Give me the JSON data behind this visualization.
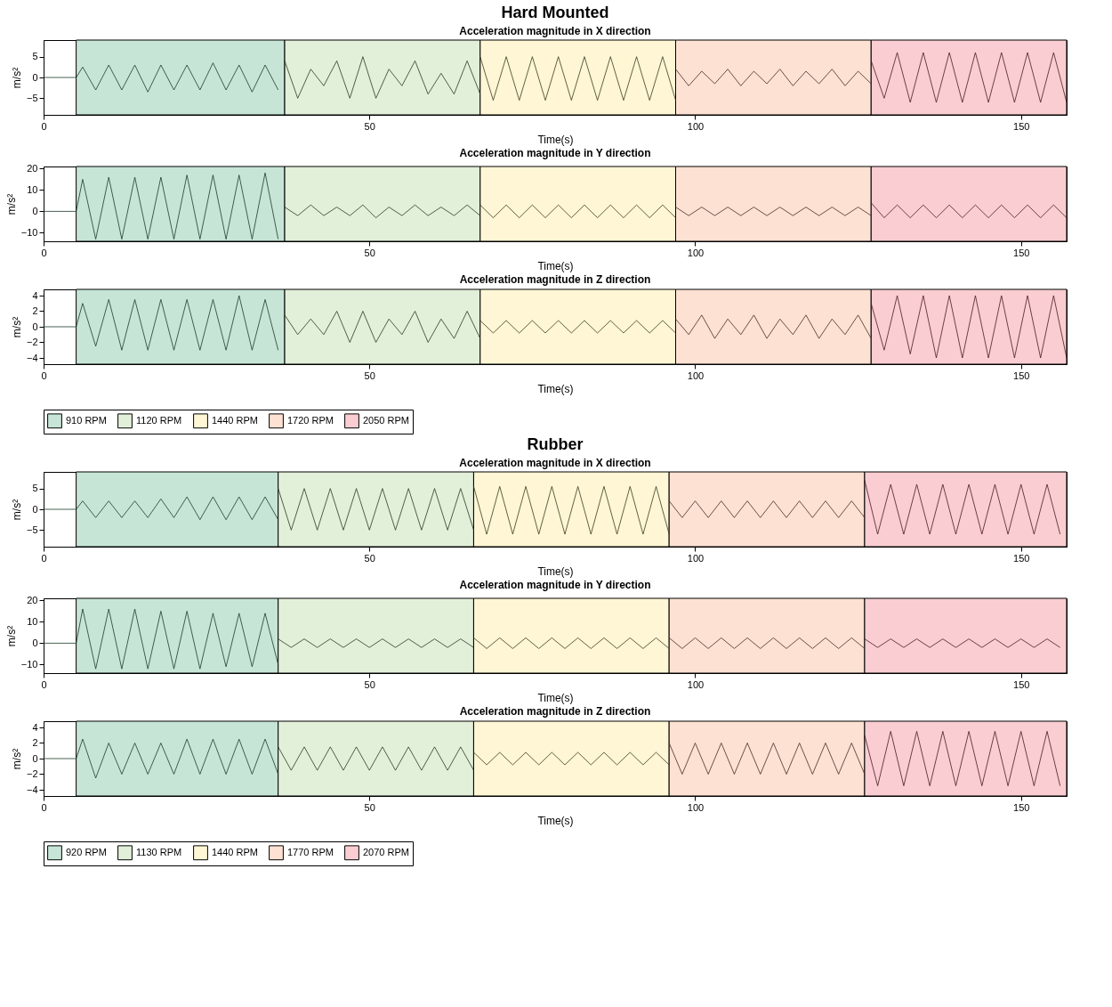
{
  "chart_data": [
    {
      "type": "line",
      "title": "Hard Mounted",
      "subtitle": "Acceleration magnitude in X direction",
      "xlabel": "Time(s)",
      "ylabel": "m/s²",
      "xlim": [
        0,
        157
      ],
      "xticks": [
        0,
        50,
        100,
        150
      ],
      "ylim": [
        -9,
        9
      ],
      "yticks": [
        -5,
        0,
        5
      ],
      "bands": [
        {
          "axis": "x",
          "from": 5,
          "to": 37,
          "color": "#c6e5d6"
        },
        {
          "axis": "x",
          "from": 37,
          "to": 67,
          "color": "#e2efd9"
        },
        {
          "axis": "x",
          "from": 67,
          "to": 97,
          "color": "#fef6d4"
        },
        {
          "axis": "x",
          "from": 97,
          "to": 127,
          "color": "#fde1d3"
        },
        {
          "axis": "x",
          "from": 127,
          "to": 157,
          "color": "#f9cdd1"
        }
      ],
      "series": [
        {
          "color": "#1d3a28",
          "x": [
            0,
            5,
            6,
            8,
            10,
            12,
            14,
            16,
            18,
            20,
            22,
            24,
            26,
            28,
            30,
            32,
            34,
            36
          ],
          "values": [
            0,
            0,
            2.5,
            -3,
            3,
            -3,
            3,
            -3.5,
            3,
            -3,
            3,
            -3,
            3.5,
            -3,
            3,
            -3.5,
            3,
            -3
          ]
        },
        {
          "color": "#2a3a1f",
          "x": [
            37,
            39,
            41,
            43,
            45,
            47,
            49,
            51,
            53,
            55,
            57,
            59,
            61,
            63,
            65,
            67
          ],
          "values": [
            4,
            -5,
            2,
            -2,
            4,
            -5,
            5,
            -5,
            2,
            -2,
            4,
            -4,
            1,
            -4,
            4,
            -4
          ]
        },
        {
          "color": "#3a3a20",
          "x": [
            67,
            69,
            71,
            73,
            75,
            77,
            79,
            81,
            83,
            85,
            87,
            89,
            91,
            93,
            95,
            97
          ],
          "values": [
            5,
            -5.5,
            5,
            -5.5,
            5,
            -5.5,
            5,
            -5.5,
            5,
            -5.5,
            5,
            -5.5,
            5,
            -5.5,
            5,
            -5.5
          ]
        },
        {
          "color": "#4a2a22",
          "x": [
            97,
            99,
            101,
            103,
            105,
            107,
            109,
            111,
            113,
            115,
            117,
            119,
            121,
            123,
            125,
            127
          ],
          "values": [
            2,
            -2,
            1.5,
            -1.5,
            2,
            -2,
            1.5,
            -1.5,
            2,
            -2,
            1.5,
            -1.5,
            2,
            -2,
            1.5,
            -1.5
          ]
        },
        {
          "color": "#4a1a22",
          "x": [
            127,
            129,
            131,
            133,
            135,
            137,
            139,
            141,
            143,
            145,
            147,
            149,
            151,
            153,
            155,
            157
          ],
          "values": [
            4,
            -5,
            6,
            -6,
            6,
            -6,
            6,
            -6,
            6,
            -6,
            6,
            -6,
            6,
            -6,
            6,
            -6
          ]
        }
      ]
    },
    {
      "type": "line",
      "title": "Acceleration magnitude in Y direction",
      "xlabel": "Time(s)",
      "ylabel": "m/s²",
      "xlim": [
        0,
        157
      ],
      "xticks": [
        0,
        50,
        100,
        150
      ],
      "ylim": [
        -14,
        21
      ],
      "yticks": [
        -10,
        0,
        10,
        20
      ],
      "bands": [
        {
          "axis": "x",
          "from": 5,
          "to": 37,
          "color": "#c6e5d6"
        },
        {
          "axis": "x",
          "from": 37,
          "to": 67,
          "color": "#e2efd9"
        },
        {
          "axis": "x",
          "from": 67,
          "to": 97,
          "color": "#fef6d4"
        },
        {
          "axis": "x",
          "from": 97,
          "to": 127,
          "color": "#fde1d3"
        },
        {
          "axis": "x",
          "from": 127,
          "to": 157,
          "color": "#f9cdd1"
        }
      ],
      "series": [
        {
          "color": "#1d3a28",
          "x": [
            0,
            5,
            6,
            8,
            10,
            12,
            14,
            16,
            18,
            20,
            22,
            24,
            26,
            28,
            30,
            32,
            34,
            36
          ],
          "values": [
            0,
            0,
            15,
            -13,
            16,
            -13,
            16,
            -13,
            16,
            -13,
            17,
            -13,
            17,
            -13,
            17,
            -13,
            18,
            -13
          ]
        },
        {
          "color": "#2a3a1f",
          "x": [
            37,
            39,
            41,
            43,
            45,
            47,
            49,
            51,
            53,
            55,
            57,
            59,
            61,
            63,
            65,
            67
          ],
          "values": [
            2,
            -2,
            3,
            -2,
            2,
            -2,
            3,
            -3,
            2,
            -2,
            3,
            -2,
            2,
            -2,
            3,
            -2
          ]
        },
        {
          "color": "#3a3a20",
          "x": [
            67,
            69,
            71,
            73,
            75,
            77,
            79,
            81,
            83,
            85,
            87,
            89,
            91,
            93,
            95,
            97
          ],
          "values": [
            3,
            -3,
            3,
            -3,
            3,
            -3,
            3,
            -3,
            3,
            -3,
            3,
            -3,
            3,
            -3,
            3,
            -3
          ]
        },
        {
          "color": "#4a2a22",
          "x": [
            97,
            99,
            101,
            103,
            105,
            107,
            109,
            111,
            113,
            115,
            117,
            119,
            121,
            123,
            125,
            127
          ],
          "values": [
            2,
            -2,
            2,
            -2,
            2,
            -2,
            2,
            -2,
            2,
            -2,
            2,
            -2,
            2,
            -2,
            2,
            -2
          ]
        },
        {
          "color": "#4a1a22",
          "x": [
            127,
            129,
            131,
            133,
            135,
            137,
            139,
            141,
            143,
            145,
            147,
            149,
            151,
            153,
            155,
            157
          ],
          "values": [
            4,
            -3,
            3,
            -3,
            3,
            -3,
            3,
            -3,
            3,
            -3,
            3,
            -3,
            3,
            -3,
            3,
            -3
          ]
        }
      ]
    },
    {
      "type": "line",
      "title": "Acceleration magnitude in Z direction",
      "xlabel": "Time(s)",
      "ylabel": "m/s²",
      "xlim": [
        0,
        157
      ],
      "xticks": [
        0,
        50,
        100,
        150
      ],
      "ylim": [
        -4.8,
        4.8
      ],
      "yticks": [
        -4,
        -2,
        0,
        2,
        4
      ],
      "legend": "bottom",
      "bands": [
        {
          "axis": "x",
          "from": 5,
          "to": 37,
          "color": "#c6e5d6",
          "label": "910 RPM"
        },
        {
          "axis": "x",
          "from": 37,
          "to": 67,
          "color": "#e2efd9",
          "label": "1120 RPM"
        },
        {
          "axis": "x",
          "from": 67,
          "to": 97,
          "color": "#fef6d4",
          "label": "1440 RPM"
        },
        {
          "axis": "x",
          "from": 97,
          "to": 127,
          "color": "#fde1d3",
          "label": "1720 RPM"
        },
        {
          "axis": "x",
          "from": 127,
          "to": 157,
          "color": "#f9cdd1",
          "label": "2050 RPM"
        }
      ],
      "series": [
        {
          "color": "#1d3a28",
          "x": [
            0,
            5,
            6,
            8,
            10,
            12,
            14,
            16,
            18,
            20,
            22,
            24,
            26,
            28,
            30,
            32,
            34,
            36
          ],
          "values": [
            0,
            0,
            3,
            -2.5,
            3.5,
            -3,
            3.5,
            -3,
            3.5,
            -3,
            3.5,
            -3,
            3.5,
            -3,
            4,
            -3,
            3.5,
            -3
          ]
        },
        {
          "color": "#2a3a1f",
          "x": [
            37,
            39,
            41,
            43,
            45,
            47,
            49,
            51,
            53,
            55,
            57,
            59,
            61,
            63,
            65,
            67
          ],
          "values": [
            1.5,
            -1,
            1,
            -1,
            2,
            -2,
            2,
            -2,
            1,
            -1,
            2,
            -2,
            1,
            -1.5,
            2,
            -1.5
          ]
        },
        {
          "color": "#3a3a20",
          "x": [
            67,
            69,
            71,
            73,
            75,
            77,
            79,
            81,
            83,
            85,
            87,
            89,
            91,
            93,
            95,
            97
          ],
          "values": [
            0.8,
            -0.8,
            0.8,
            -0.8,
            0.8,
            -0.8,
            0.8,
            -0.8,
            0.8,
            -0.8,
            0.8,
            -0.8,
            0.8,
            -0.8,
            0.8,
            -0.8
          ]
        },
        {
          "color": "#4a2a22",
          "x": [
            97,
            99,
            101,
            103,
            105,
            107,
            109,
            111,
            113,
            115,
            117,
            119,
            121,
            123,
            125,
            127
          ],
          "values": [
            1,
            -1,
            1.5,
            -1.5,
            1,
            -1,
            1.5,
            -1.5,
            1,
            -1,
            1.5,
            -1.5,
            1,
            -1,
            1.5,
            -1.5
          ]
        },
        {
          "color": "#4a1a22",
          "x": [
            127,
            129,
            131,
            133,
            135,
            137,
            139,
            141,
            143,
            145,
            147,
            149,
            151,
            153,
            155,
            157
          ],
          "values": [
            3,
            -3,
            4,
            -3.5,
            4,
            -4,
            4,
            -4,
            4,
            -4,
            4,
            -4,
            4,
            -4,
            4,
            -4
          ]
        }
      ]
    },
    {
      "type": "line",
      "title": "Rubber",
      "subtitle": "Acceleration magnitude in X direction",
      "xlabel": "Time(s)",
      "ylabel": "m/s²",
      "xlim": [
        0,
        157
      ],
      "xticks": [
        0,
        50,
        100,
        150
      ],
      "ylim": [
        -9,
        9
      ],
      "yticks": [
        -5,
        0,
        5
      ],
      "bands": [
        {
          "axis": "x",
          "from": 5,
          "to": 36,
          "color": "#c6e5d6"
        },
        {
          "axis": "x",
          "from": 36,
          "to": 66,
          "color": "#e2efd9"
        },
        {
          "axis": "x",
          "from": 66,
          "to": 96,
          "color": "#fef6d4"
        },
        {
          "axis": "x",
          "from": 96,
          "to": 126,
          "color": "#fde1d3"
        },
        {
          "axis": "x",
          "from": 126,
          "to": 157,
          "color": "#f9cdd1"
        }
      ],
      "series": [
        {
          "color": "#1d3a28",
          "x": [
            0,
            5,
            6,
            8,
            10,
            12,
            14,
            16,
            18,
            20,
            22,
            24,
            26,
            28,
            30,
            32,
            34,
            36
          ],
          "values": [
            0,
            0,
            2,
            -2,
            2,
            -2,
            2,
            -2,
            2.5,
            -2,
            3,
            -2.5,
            3,
            -2.5,
            3,
            -2.5,
            3,
            -2.5
          ]
        },
        {
          "color": "#2a3a1f",
          "x": [
            36,
            38,
            40,
            42,
            44,
            46,
            48,
            50,
            52,
            54,
            56,
            58,
            60,
            62,
            64,
            66
          ],
          "values": [
            5,
            -5,
            5,
            -5,
            5,
            -5,
            5,
            -5,
            5,
            -5,
            5,
            -5,
            5,
            -5,
            5,
            -5
          ]
        },
        {
          "color": "#3a3a20",
          "x": [
            66,
            68,
            70,
            72,
            74,
            76,
            78,
            80,
            82,
            84,
            86,
            88,
            90,
            92,
            94,
            96
          ],
          "values": [
            5.5,
            -6,
            5.5,
            -6,
            5.5,
            -6,
            5.5,
            -6,
            5.5,
            -6,
            5.5,
            -6,
            5.5,
            -6,
            5.5,
            -6
          ]
        },
        {
          "color": "#4a2a22",
          "x": [
            96,
            98,
            100,
            102,
            104,
            106,
            108,
            110,
            112,
            114,
            116,
            118,
            120,
            122,
            124,
            126
          ],
          "values": [
            2,
            -2,
            2,
            -2,
            2,
            -2,
            2,
            -2,
            2,
            -2,
            2,
            -2,
            2,
            -2,
            2,
            -2
          ]
        },
        {
          "color": "#4a1a22",
          "x": [
            126,
            128,
            130,
            132,
            134,
            136,
            138,
            140,
            142,
            144,
            146,
            148,
            150,
            152,
            154,
            156
          ],
          "values": [
            7,
            -6,
            6,
            -6,
            6,
            -6,
            6,
            -6,
            6,
            -6,
            6,
            -6,
            6,
            -6,
            6,
            -6
          ]
        }
      ]
    },
    {
      "type": "line",
      "title": "Acceleration magnitude in Y direction",
      "xlabel": "Time(s)",
      "ylabel": "m/s²",
      "xlim": [
        0,
        157
      ],
      "xticks": [
        0,
        50,
        100,
        150
      ],
      "ylim": [
        -14,
        21
      ],
      "yticks": [
        -10,
        0,
        10,
        20
      ],
      "bands": [
        {
          "axis": "x",
          "from": 5,
          "to": 36,
          "color": "#c6e5d6"
        },
        {
          "axis": "x",
          "from": 36,
          "to": 66,
          "color": "#e2efd9"
        },
        {
          "axis": "x",
          "from": 66,
          "to": 96,
          "color": "#fef6d4"
        },
        {
          "axis": "x",
          "from": 96,
          "to": 126,
          "color": "#fde1d3"
        },
        {
          "axis": "x",
          "from": 126,
          "to": 157,
          "color": "#f9cdd1"
        }
      ],
      "series": [
        {
          "color": "#1d3a28",
          "x": [
            0,
            5,
            6,
            8,
            10,
            12,
            14,
            16,
            18,
            20,
            22,
            24,
            26,
            28,
            30,
            32,
            34,
            36
          ],
          "values": [
            0,
            0,
            16,
            -12,
            16,
            -12,
            16,
            -12,
            15,
            -12,
            15,
            -12,
            14,
            -11,
            14,
            -11,
            14,
            -10
          ]
        },
        {
          "color": "#2a3a1f",
          "x": [
            36,
            38,
            40,
            42,
            44,
            46,
            48,
            50,
            52,
            54,
            56,
            58,
            60,
            62,
            64,
            66
          ],
          "values": [
            2,
            -2,
            2,
            -2,
            2,
            -2,
            2,
            -2,
            2,
            -2,
            2,
            -2,
            2,
            -2,
            2,
            -2
          ]
        },
        {
          "color": "#3a3a20",
          "x": [
            66,
            68,
            70,
            72,
            74,
            76,
            78,
            80,
            82,
            84,
            86,
            88,
            90,
            92,
            94,
            96
          ],
          "values": [
            2.5,
            -2.5,
            2.5,
            -2.5,
            2.5,
            -2.5,
            2.5,
            -2.5,
            2.5,
            -2.5,
            2.5,
            -2.5,
            2.5,
            -2.5,
            2.5,
            -2.5
          ]
        },
        {
          "color": "#4a2a22",
          "x": [
            96,
            98,
            100,
            102,
            104,
            106,
            108,
            110,
            112,
            114,
            116,
            118,
            120,
            122,
            124,
            126
          ],
          "values": [
            2.5,
            -2.5,
            2.5,
            -2.5,
            2.5,
            -2.5,
            2.5,
            -2.5,
            2.5,
            -2.5,
            2.5,
            -2.5,
            2.5,
            -2.5,
            2.5,
            -2.5
          ]
        },
        {
          "color": "#4a1a22",
          "x": [
            126,
            128,
            130,
            132,
            134,
            136,
            138,
            140,
            142,
            144,
            146,
            148,
            150,
            152,
            154,
            156
          ],
          "values": [
            2,
            -2,
            2,
            -2,
            2,
            -2,
            2,
            -2,
            2,
            -2,
            2,
            -2,
            2,
            -2,
            2,
            -2
          ]
        }
      ]
    },
    {
      "type": "line",
      "title": "Acceleration magnitude in Z direction",
      "xlabel": "Time(s)",
      "ylabel": "m/s²",
      "xlim": [
        0,
        157
      ],
      "xticks": [
        0,
        50,
        100,
        150
      ],
      "ylim": [
        -4.8,
        4.8
      ],
      "yticks": [
        -4,
        -2,
        0,
        2,
        4
      ],
      "legend": "bottom",
      "bands": [
        {
          "axis": "x",
          "from": 5,
          "to": 36,
          "color": "#c6e5d6",
          "label": "920 RPM"
        },
        {
          "axis": "x",
          "from": 36,
          "to": 66,
          "color": "#e2efd9",
          "label": "1130 RPM"
        },
        {
          "axis": "x",
          "from": 66,
          "to": 96,
          "color": "#fef6d4",
          "label": "1440 RPM"
        },
        {
          "axis": "x",
          "from": 96,
          "to": 126,
          "color": "#fde1d3",
          "label": "1770 RPM"
        },
        {
          "axis": "x",
          "from": 126,
          "to": 157,
          "color": "#f9cdd1",
          "label": "2070 RPM"
        }
      ],
      "series": [
        {
          "color": "#1d3a28",
          "x": [
            0,
            5,
            6,
            8,
            10,
            12,
            14,
            16,
            18,
            20,
            22,
            24,
            26,
            28,
            30,
            32,
            34,
            36
          ],
          "values": [
            0,
            0,
            2.5,
            -2.5,
            2,
            -2,
            2,
            -2,
            2,
            -2,
            2.5,
            -2,
            2.5,
            -2,
            2.5,
            -2,
            2.5,
            -2
          ]
        },
        {
          "color": "#2a3a1f",
          "x": [
            36,
            38,
            40,
            42,
            44,
            46,
            48,
            50,
            52,
            54,
            56,
            58,
            60,
            62,
            64,
            66
          ],
          "values": [
            1.5,
            -1.5,
            1.5,
            -1.5,
            1.5,
            -1.5,
            1.5,
            -1.5,
            1.5,
            -1.5,
            1.5,
            -1.5,
            1.5,
            -1.5,
            1.5,
            -1.5
          ]
        },
        {
          "color": "#3a3a20",
          "x": [
            66,
            68,
            70,
            72,
            74,
            76,
            78,
            80,
            82,
            84,
            86,
            88,
            90,
            92,
            94,
            96
          ],
          "values": [
            0.8,
            -0.8,
            0.8,
            -0.8,
            0.8,
            -0.8,
            0.8,
            -0.8,
            0.8,
            -0.8,
            0.8,
            -0.8,
            0.8,
            -0.8,
            0.8,
            -0.8
          ]
        },
        {
          "color": "#4a2a22",
          "x": [
            96,
            98,
            100,
            102,
            104,
            106,
            108,
            110,
            112,
            114,
            116,
            118,
            120,
            122,
            124,
            126
          ],
          "values": [
            2,
            -2,
            2,
            -2,
            2,
            -2,
            2,
            -2,
            2,
            -2,
            2,
            -2,
            2,
            -2,
            2,
            -2
          ]
        },
        {
          "color": "#4a1a22",
          "x": [
            126,
            128,
            130,
            132,
            134,
            136,
            138,
            140,
            142,
            144,
            146,
            148,
            150,
            152,
            154,
            156
          ],
          "values": [
            3,
            -3.5,
            3.5,
            -3.5,
            3.5,
            -3.5,
            3.5,
            -3.5,
            3.5,
            -3.5,
            3.5,
            -3.5,
            3.5,
            -3.5,
            3.5,
            -3.5
          ]
        }
      ]
    }
  ]
}
